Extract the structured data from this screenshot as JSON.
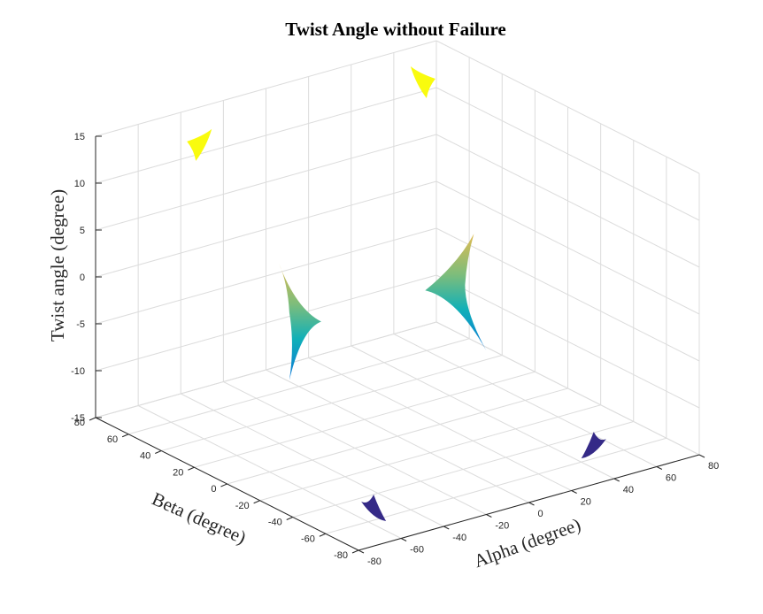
{
  "chart_data": {
    "type": "surface3d",
    "title": "Twist Angle without Failure",
    "xlabel": "Alpha (degree)",
    "ylabel": "Beta (degree)",
    "zlabel": "Twist angle (degree)",
    "xlim": [
      -80,
      80
    ],
    "ylim": [
      -80,
      80
    ],
    "zlim": [
      -15,
      15
    ],
    "xticks": [
      -80,
      -60,
      -40,
      -20,
      0,
      20,
      40,
      60,
      80
    ],
    "yticks": [
      -80,
      -60,
      -40,
      -20,
      0,
      20,
      40,
      60,
      80
    ],
    "zticks": [
      -15,
      -10,
      -5,
      0,
      5,
      10,
      15
    ],
    "grid": true,
    "colormap": [
      "#352a87",
      "#0f5cdd",
      "#1481d6",
      "#06a4ca",
      "#2eb7a4",
      "#87bf77",
      "#d1bb59",
      "#fec832",
      "#f9fb0e"
    ],
    "surfaces": [
      {
        "name": "top-left",
        "alpha": [
          -70,
          -35
        ],
        "beta": [
          35,
          70
        ],
        "twist": [
          14,
          15.5
        ],
        "color_level": 1.0
      },
      {
        "name": "top-right",
        "alpha": [
          35,
          70
        ],
        "beta": [
          35,
          70
        ],
        "twist": [
          14,
          15.5
        ],
        "color_level": 1.0
      },
      {
        "name": "mid-left",
        "alpha": [
          -60,
          -10
        ],
        "beta": [
          -10,
          40
        ],
        "twist": [
          -8,
          5
        ],
        "color_level": 0.55
      },
      {
        "name": "mid-right",
        "alpha": [
          10,
          60
        ],
        "beta": [
          -10,
          40
        ],
        "twist": [
          -8,
          5
        ],
        "color_level": 0.55
      },
      {
        "name": "bottom-left",
        "alpha": [
          -70,
          -35
        ],
        "beta": [
          -70,
          -35
        ],
        "twist": [
          -15.5,
          -14
        ],
        "color_level": 0.0
      },
      {
        "name": "bottom-right",
        "alpha": [
          35,
          70
        ],
        "beta": [
          -70,
          -35
        ],
        "twist": [
          -15.5,
          -14
        ],
        "color_level": 0.0
      }
    ]
  }
}
